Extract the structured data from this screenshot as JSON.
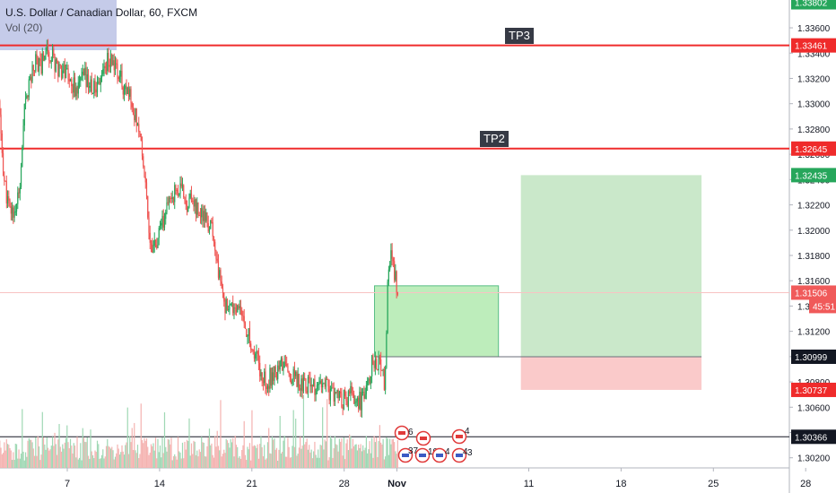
{
  "legend": {
    "title": "U.S. Dollar / Canadian Dollar, 60, FXCM",
    "volume": "Vol (20)"
  },
  "chart_data": {
    "type": "candlestick",
    "title": "U.S. Dollar / Canadian Dollar, 60, FXCM",
    "ylim": [
      1.3012,
      1.3382
    ],
    "y_ticks": [
      "1.33600",
      "1.33400",
      "1.33200",
      "1.33000",
      "1.32800",
      "1.32600",
      "1.32400",
      "1.32200",
      "1.32000",
      "1.31800",
      "1.31600",
      "1.31400",
      "1.31200",
      "1.31000",
      "1.30800",
      "1.30600",
      "1.30400",
      "1.30200"
    ],
    "x_ticks": [
      {
        "label": "7",
        "day": 7
      },
      {
        "label": "14",
        "day": 14
      },
      {
        "label": "21",
        "day": 21
      },
      {
        "label": "28",
        "day": 28
      },
      {
        "label": "Nov",
        "day": 32,
        "bold": true
      },
      {
        "label": "11",
        "day": 42
      },
      {
        "label": "18",
        "day": 49
      },
      {
        "label": "25",
        "day": 56
      },
      {
        "label": "28",
        "day": 63
      }
    ],
    "x_range_days": [
      1.8,
      64.5
    ],
    "price_path": [
      [
        1.8,
        1.33
      ],
      [
        2.2,
        1.324
      ],
      [
        2.6,
        1.3215
      ],
      [
        3.0,
        1.3215
      ],
      [
        3.4,
        1.323
      ],
      [
        3.8,
        1.33
      ],
      [
        4.2,
        1.332
      ],
      [
        4.6,
        1.3335
      ],
      [
        5.0,
        1.333
      ],
      [
        5.4,
        1.3345
      ],
      [
        5.8,
        1.3338
      ],
      [
        6.2,
        1.333
      ],
      [
        6.6,
        1.3328
      ],
      [
        7.0,
        1.3325
      ],
      [
        7.4,
        1.3315
      ],
      [
        7.8,
        1.331
      ],
      [
        8.2,
        1.3322
      ],
      [
        8.6,
        1.3318
      ],
      [
        9.0,
        1.331
      ],
      [
        9.4,
        1.3318
      ],
      [
        9.8,
        1.333
      ],
      [
        10.2,
        1.3335
      ],
      [
        10.6,
        1.333
      ],
      [
        11.0,
        1.332
      ],
      [
        11.4,
        1.331
      ],
      [
        11.8,
        1.3305
      ],
      [
        12.2,
        1.329
      ],
      [
        12.5,
        1.328
      ],
      [
        12.9,
        1.324
      ],
      [
        13.3,
        1.319
      ],
      [
        13.7,
        1.3185
      ],
      [
        14.1,
        1.32
      ],
      [
        14.5,
        1.3215
      ],
      [
        14.9,
        1.3228
      ],
      [
        15.3,
        1.3232
      ],
      [
        15.7,
        1.323
      ],
      [
        16.1,
        1.3222
      ],
      [
        16.5,
        1.3225
      ],
      [
        16.9,
        1.3215
      ],
      [
        17.3,
        1.321
      ],
      [
        17.7,
        1.3205
      ],
      [
        18.1,
        1.3195
      ],
      [
        18.5,
        1.3165
      ],
      [
        18.9,
        1.314
      ],
      [
        19.3,
        1.3135
      ],
      [
        19.7,
        1.3138
      ],
      [
        20.1,
        1.3135
      ],
      [
        20.5,
        1.3125
      ],
      [
        20.9,
        1.311
      ],
      [
        21.3,
        1.31
      ],
      [
        21.7,
        1.309
      ],
      [
        22.1,
        1.308
      ],
      [
        22.5,
        1.3085
      ],
      [
        22.9,
        1.309
      ],
      [
        23.3,
        1.3095
      ],
      [
        23.7,
        1.309
      ],
      [
        24.1,
        1.3085
      ],
      [
        24.5,
        1.3082
      ],
      [
        24.9,
        1.3078
      ],
      [
        25.3,
        1.308
      ],
      [
        25.7,
        1.3075
      ],
      [
        26.1,
        1.3072
      ],
      [
        26.5,
        1.3078
      ],
      [
        26.9,
        1.3072
      ],
      [
        27.3,
        1.307
      ],
      [
        27.7,
        1.3068
      ],
      [
        28.1,
        1.3065
      ],
      [
        28.5,
        1.307
      ],
      [
        28.9,
        1.3065
      ],
      [
        29.3,
        1.3065
      ],
      [
        29.7,
        1.307
      ],
      [
        30.1,
        1.3095
      ],
      [
        30.5,
        1.3098
      ],
      [
        30.9,
        1.3085
      ],
      [
        31.1,
        1.308
      ],
      [
        31.3,
        1.316
      ],
      [
        31.5,
        1.318
      ],
      [
        31.7,
        1.3172
      ],
      [
        31.9,
        1.316
      ],
      [
        32.1,
        1.31506
      ]
    ],
    "series": [
      {
        "name": "TP3",
        "type": "hline",
        "value": 1.33461
      },
      {
        "name": "TP2",
        "type": "hline",
        "value": 1.32645
      }
    ],
    "price_labels": [
      {
        "text": "1.33802",
        "value": 1.33802,
        "color": "#26a65b"
      },
      {
        "text": "1.33461",
        "value": 1.33461,
        "color": "#ef2b2b"
      },
      {
        "text": "1.32645",
        "value": 1.32645,
        "color": "#ef2b2b"
      },
      {
        "text": "1.32435",
        "value": 1.32435,
        "color": "#26a65b"
      },
      {
        "text": "1.31506",
        "value": 1.31506,
        "color": "#f05a5a"
      },
      {
        "text": "45:51",
        "value": 1.314,
        "color": "#f05a5a"
      },
      {
        "text": "1.30999",
        "value": 1.30999,
        "color": "#131722"
      },
      {
        "text": "1.30737",
        "value": 1.30737,
        "color": "#ef2b2b"
      },
      {
        "text": "1.30366",
        "value": 1.30366,
        "color": "#131722"
      }
    ],
    "positions": [
      {
        "entry": 1.30999,
        "target": 1.3156,
        "stop": 1.30999,
        "x_start_day": 30.3,
        "x_end_day": 39.7
      },
      {
        "entry": 1.30999,
        "target": 1.32435,
        "stop": 1.30737,
        "x_start_day": 41.4,
        "x_end_day": 55.1
      }
    ],
    "horizontal_lines": [
      {
        "value": 1.30366,
        "color": "#131722"
      },
      {
        "value": 1.31506,
        "color": "#f8c3c3"
      }
    ]
  },
  "tp_tags": [
    "TP3",
    "TP2"
  ],
  "event_badges": [
    "6",
    "4",
    "37",
    "10",
    "4",
    "4",
    "3"
  ],
  "colors": {
    "up": "#26a65b",
    "down": "#ef5350",
    "tp_line": "#ef2b2b",
    "target_zone": "#b2ebb0",
    "stop_zone": "#f7a7a7",
    "tag_bg": "#363a45"
  }
}
